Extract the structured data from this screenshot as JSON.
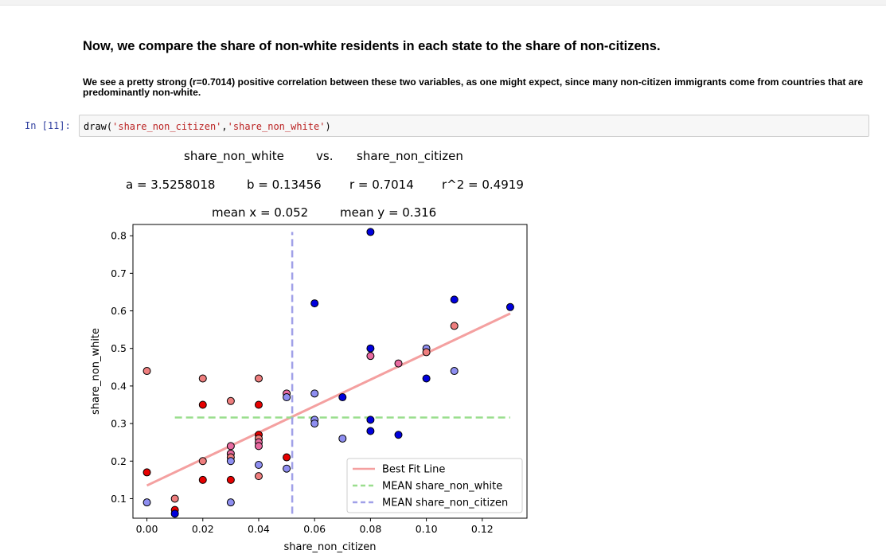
{
  "markdown": {
    "heading": "Now, we compare the share of non-white residents in each state to the share of non-citizens.",
    "paragraph": "We see a pretty strong (r=0.7014) positive correlation between these two variables, as one might expect, since many non-citizen immigrants come from countries that are predominantly non-white."
  },
  "cell": {
    "prompt": "In [11]:",
    "code_fn": "draw(",
    "code_arg1": "'share_non_citizen'",
    "code_sep": ",",
    "code_arg2": "'share_non_white'",
    "code_end": ")"
  },
  "stats": {
    "line1_left": "share_non_white",
    "line1_mid": "vs.",
    "line1_right": "share_non_citizen",
    "a": "a = 3.5258018",
    "b": "b = 0.13456",
    "r": "r = 0.7014",
    "r2": "r^2 = 0.4919",
    "mean_x": "mean x = 0.052",
    "mean_y": "mean y = 0.316"
  },
  "chart_data": {
    "type": "scatter",
    "xlabel": "share_non_citizen",
    "ylabel": "share_non_white",
    "xlim": [
      -0.005,
      0.136
    ],
    "ylim": [
      0.048,
      0.83
    ],
    "xticks": [
      0.0,
      0.02,
      0.04,
      0.06,
      0.08,
      0.1,
      0.12
    ],
    "xtick_labels": [
      "0.00",
      "0.02",
      "0.04",
      "0.06",
      "0.08",
      "0.10",
      "0.12"
    ],
    "yticks": [
      0.1,
      0.2,
      0.3,
      0.4,
      0.5,
      0.6,
      0.7,
      0.8
    ],
    "ytick_labels": [
      "0.1",
      "0.2",
      "0.3",
      "0.4",
      "0.5",
      "0.6",
      "0.7",
      "0.8"
    ],
    "grid": false,
    "legend_position": "lower-right",
    "points": [
      {
        "x": 0.0,
        "y": 0.44,
        "color": "#ee7e7e"
      },
      {
        "x": 0.0,
        "y": 0.17,
        "color": "#e60000"
      },
      {
        "x": 0.0,
        "y": 0.09,
        "color": "#8e8ef0"
      },
      {
        "x": 0.01,
        "y": 0.1,
        "color": "#ee7e7e"
      },
      {
        "x": 0.01,
        "y": 0.07,
        "color": "#e60000"
      },
      {
        "x": 0.01,
        "y": 0.06,
        "color": "#0000dd"
      },
      {
        "x": 0.02,
        "y": 0.42,
        "color": "#ee7e7e"
      },
      {
        "x": 0.02,
        "y": 0.35,
        "color": "#e60000"
      },
      {
        "x": 0.02,
        "y": 0.2,
        "color": "#ee7e7e"
      },
      {
        "x": 0.02,
        "y": 0.15,
        "color": "#e60000"
      },
      {
        "x": 0.03,
        "y": 0.36,
        "color": "#ee7e7e"
      },
      {
        "x": 0.03,
        "y": 0.24,
        "color": "#e86aa0"
      },
      {
        "x": 0.03,
        "y": 0.22,
        "color": "#e86aa0"
      },
      {
        "x": 0.03,
        "y": 0.21,
        "color": "#ee7e7e"
      },
      {
        "x": 0.03,
        "y": 0.2,
        "color": "#8e8ef0"
      },
      {
        "x": 0.03,
        "y": 0.15,
        "color": "#e60000"
      },
      {
        "x": 0.03,
        "y": 0.09,
        "color": "#8e8ef0"
      },
      {
        "x": 0.04,
        "y": 0.42,
        "color": "#ee7e7e"
      },
      {
        "x": 0.04,
        "y": 0.35,
        "color": "#e60000"
      },
      {
        "x": 0.04,
        "y": 0.27,
        "color": "#e60000"
      },
      {
        "x": 0.04,
        "y": 0.26,
        "color": "#ee7e7e"
      },
      {
        "x": 0.04,
        "y": 0.25,
        "color": "#e86aa0"
      },
      {
        "x": 0.04,
        "y": 0.24,
        "color": "#e86aa0"
      },
      {
        "x": 0.04,
        "y": 0.19,
        "color": "#8e8ef0"
      },
      {
        "x": 0.04,
        "y": 0.16,
        "color": "#ee7e7e"
      },
      {
        "x": 0.05,
        "y": 0.38,
        "color": "#e86aa0"
      },
      {
        "x": 0.05,
        "y": 0.37,
        "color": "#8e8ef0"
      },
      {
        "x": 0.05,
        "y": 0.21,
        "color": "#e60000"
      },
      {
        "x": 0.05,
        "y": 0.18,
        "color": "#8e8ef0"
      },
      {
        "x": 0.06,
        "y": 0.62,
        "color": "#0000dd"
      },
      {
        "x": 0.06,
        "y": 0.38,
        "color": "#8e8ef0"
      },
      {
        "x": 0.06,
        "y": 0.31,
        "color": "#8e8ef0"
      },
      {
        "x": 0.06,
        "y": 0.3,
        "color": "#8e8ef0"
      },
      {
        "x": 0.07,
        "y": 0.37,
        "color": "#0000dd"
      },
      {
        "x": 0.07,
        "y": 0.26,
        "color": "#8e8ef0"
      },
      {
        "x": 0.08,
        "y": 0.81,
        "color": "#0000dd"
      },
      {
        "x": 0.08,
        "y": 0.5,
        "color": "#0000dd"
      },
      {
        "x": 0.08,
        "y": 0.48,
        "color": "#e86aa0"
      },
      {
        "x": 0.08,
        "y": 0.31,
        "color": "#0000dd"
      },
      {
        "x": 0.08,
        "y": 0.28,
        "color": "#0000dd"
      },
      {
        "x": 0.09,
        "y": 0.46,
        "color": "#e86aa0"
      },
      {
        "x": 0.09,
        "y": 0.27,
        "color": "#0000dd"
      },
      {
        "x": 0.1,
        "y": 0.5,
        "color": "#8e8ef0"
      },
      {
        "x": 0.1,
        "y": 0.49,
        "color": "#ee7e7e"
      },
      {
        "x": 0.1,
        "y": 0.42,
        "color": "#0000dd"
      },
      {
        "x": 0.11,
        "y": 0.63,
        "color": "#0000dd"
      },
      {
        "x": 0.11,
        "y": 0.56,
        "color": "#ee7e7e"
      },
      {
        "x": 0.11,
        "y": 0.44,
        "color": "#8e8ef0"
      },
      {
        "x": 0.13,
        "y": 0.61,
        "color": "#0000dd"
      }
    ],
    "fit_line": {
      "name": "Best Fit Line",
      "x": [
        0.0,
        0.13
      ],
      "y": [
        0.135,
        0.593
      ],
      "color": "#f4a0a0"
    },
    "mean_y_line": {
      "name": "MEAN share_non_white",
      "value": 0.316,
      "x_range": [
        0.01,
        0.13
      ],
      "color": "#9ade8e"
    },
    "mean_x_line": {
      "name": "MEAN share_non_citizen",
      "value": 0.052,
      "y_range": [
        0.06,
        0.81
      ],
      "color": "#a0a0e8"
    }
  }
}
